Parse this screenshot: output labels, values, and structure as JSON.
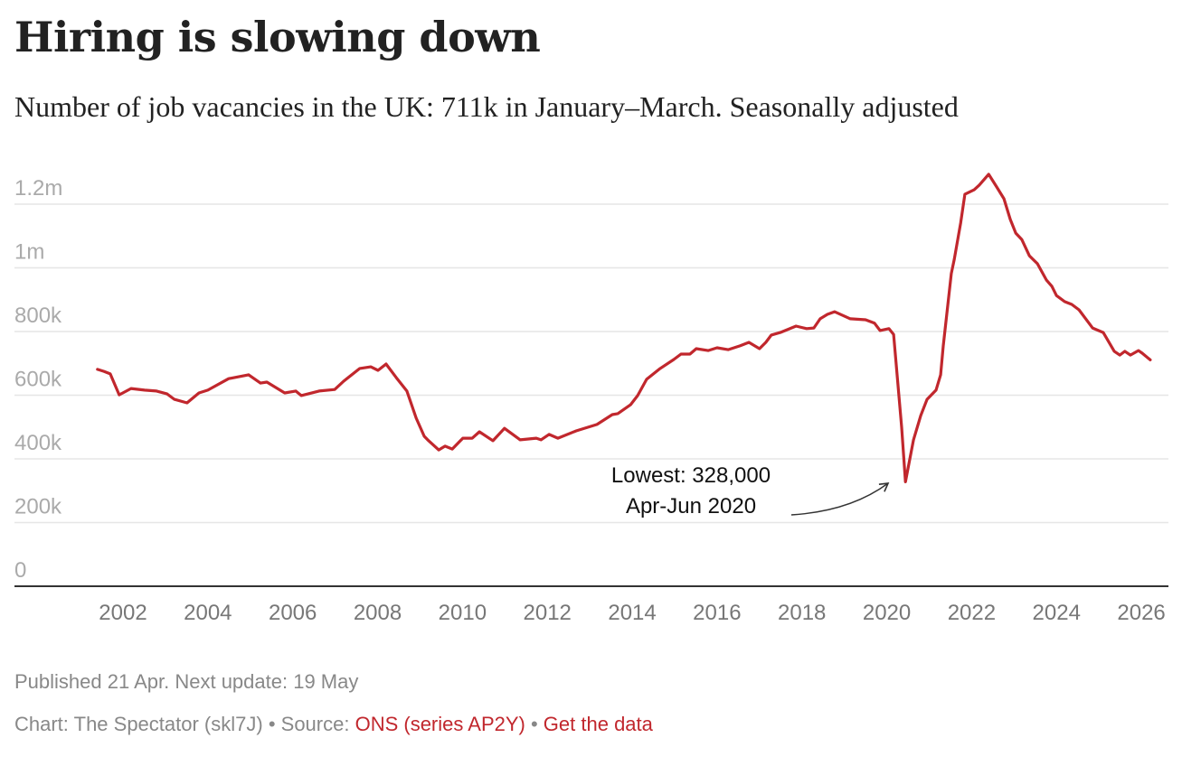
{
  "header": {
    "title": "Hiring is slowing down",
    "subtitle": "Number of job vacancies in the UK: 711k in January–March. Seasonally adjusted"
  },
  "footer": {
    "published": "Published 21 Apr. Next update: 19 May",
    "credit_prefix": "Chart: The Spectator (skl7J)",
    "separator": " • ",
    "source_prefix": "Source: ",
    "source_link": "ONS (series AP2Y)",
    "data_link": "Get the data"
  },
  "colors": {
    "line": "#c1272d",
    "link": "#c1272d",
    "grid": "#e6e6e6",
    "baseline": "#333333"
  },
  "chart_data": {
    "type": "line",
    "title": "Hiring is slowing down",
    "subtitle": "Number of job vacancies in the UK: 711k in January–March. Seasonally adjusted",
    "xlabel": "",
    "ylabel": "",
    "xlim": [
      2001.3,
      2026.3
    ],
    "ylim": [
      0,
      1300000
    ],
    "grid": true,
    "legend": "none",
    "x_ticks": [
      2002,
      2004,
      2006,
      2008,
      2010,
      2012,
      2014,
      2016,
      2018,
      2020,
      2022,
      2024,
      2026
    ],
    "x_tick_labels": [
      "2002",
      "2004",
      "2006",
      "2008",
      "2010",
      "2012",
      "2014",
      "2016",
      "2018",
      "2020",
      "2022",
      "2024",
      "2026"
    ],
    "y_ticks": [
      0,
      200000,
      400000,
      600000,
      800000,
      1000000,
      1200000
    ],
    "y_tick_labels": [
      "0",
      "200k",
      "400k",
      "600k",
      "800k",
      "1m",
      "1.2m"
    ],
    "series": [
      {
        "name": "Job vacancies",
        "x": [
          2001.4,
          2001.55,
          2001.7,
          2001.91,
          2002.19,
          2002.51,
          2002.79,
          2003.04,
          2003.21,
          2003.51,
          2003.79,
          2004.0,
          2004.49,
          2004.96,
          2005.24,
          2005.39,
          2005.81,
          2006.07,
          2006.2,
          2006.62,
          2006.99,
          2007.2,
          2007.58,
          2007.84,
          2008.01,
          2008.2,
          2008.44,
          2008.69,
          2008.91,
          2009.1,
          2009.18,
          2009.44,
          2009.59,
          2009.76,
          2010.01,
          2010.23,
          2010.4,
          2010.72,
          2010.99,
          2011.36,
          2011.74,
          2011.85,
          2012.04,
          2012.25,
          2012.68,
          2013.17,
          2013.53,
          2013.66,
          2013.96,
          2014.13,
          2014.34,
          2014.66,
          2014.98,
          2015.15,
          2015.36,
          2015.51,
          2015.79,
          2016.0,
          2016.26,
          2016.54,
          2016.75,
          2017.0,
          2017.15,
          2017.28,
          2017.49,
          2017.86,
          2018.11,
          2018.28,
          2018.43,
          2018.6,
          2018.77,
          2019.14,
          2019.5,
          2019.71,
          2019.84,
          2020.05,
          2020.16,
          2020.35,
          2020.44,
          2020.63,
          2020.8,
          2020.95,
          2021.16,
          2021.27,
          2021.33,
          2021.52,
          2021.59,
          2021.74,
          2021.84,
          2022.06,
          2022.18,
          2022.4,
          2022.59,
          2022.76,
          2022.91,
          2023.04,
          2023.18,
          2023.36,
          2023.55,
          2023.76,
          2023.89,
          2024.0,
          2024.19,
          2024.36,
          2024.53,
          2024.85,
          2025.1,
          2025.36,
          2025.49,
          2025.61,
          2025.74,
          2025.93,
          2026.02,
          2026.21
        ],
        "values": [
          681000,
          675000,
          667000,
          601000,
          621000,
          616000,
          613000,
          604000,
          587000,
          576000,
          607000,
          616000,
          652000,
          664000,
          638000,
          641000,
          607000,
          613000,
          599000,
          613000,
          618000,
          644000,
          684000,
          689000,
          678000,
          698000,
          655000,
          613000,
          528000,
          471000,
          460000,
          428000,
          440000,
          431000,
          465000,
          465000,
          485000,
          457000,
          496000,
          460000,
          465000,
          460000,
          477000,
          465000,
          488000,
          508000,
          539000,
          542000,
          570000,
          599000,
          650000,
          684000,
          712000,
          729000,
          729000,
          746000,
          740000,
          749000,
          743000,
          755000,
          766000,
          746000,
          766000,
          789000,
          797000,
          817000,
          809000,
          811000,
          840000,
          854000,
          862000,
          840000,
          837000,
          826000,
          803000,
          809000,
          791000,
          499000,
          328000,
          460000,
          536000,
          587000,
          616000,
          664000,
          755000,
          982000,
          1027000,
          1140000,
          1231000,
          1245000,
          1260000,
          1294000,
          1254000,
          1217000,
          1152000,
          1109000,
          1089000,
          1038000,
          1013000,
          962000,
          942000,
          913000,
          894000,
          885000,
          868000,
          811000,
          797000,
          738000,
          726000,
          738000,
          726000,
          740000,
          732000,
          711000
        ]
      }
    ],
    "annotations": [
      {
        "text_line1": "Lowest: 328,000",
        "text_line2": "Apr-Jun 2020",
        "x": 2020.44,
        "value": 328000
      }
    ]
  }
}
